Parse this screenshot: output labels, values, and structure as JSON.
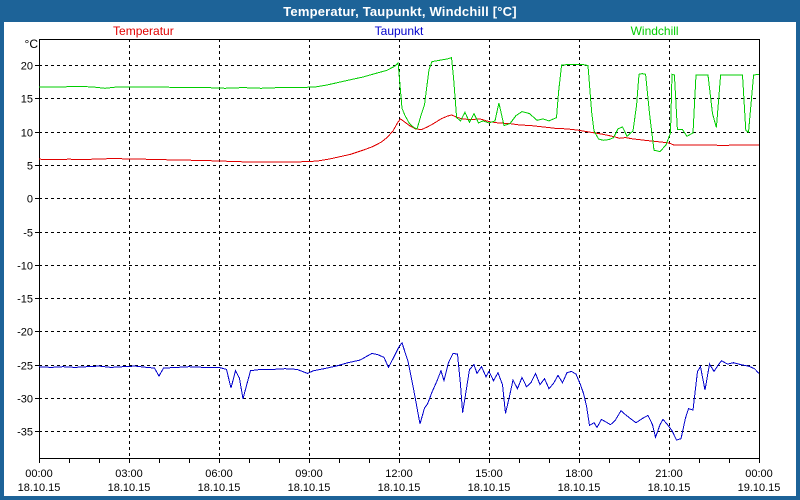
{
  "window": {
    "title": "Temperatur, Taupunkt, Windchill [°C]"
  },
  "colors": {
    "titlebar": "#1d6398",
    "frame_border": "#1d6398",
    "background": "#ffffff",
    "plot_frame": "#000000",
    "gridline": "#000000",
    "tick_text": "#000000",
    "title_text": "#ffffff",
    "temperatur": "#e00000",
    "taupunkt": "#0000cc",
    "windchill": "#00cc00"
  },
  "legend": {
    "items": [
      {
        "label": "Temperatur",
        "color": "#e00000"
      },
      {
        "label": "Taupunkt",
        "color": "#0000cc"
      },
      {
        "label": "Windchill",
        "color": "#00cc00"
      }
    ]
  },
  "chart_data": {
    "type": "line",
    "title": "Temperatur, Taupunkt, Windchill [°C]",
    "ylabel": "°C",
    "xlabel": "",
    "grid": "dashed",
    "legend_position": "top",
    "ylim": [
      -39,
      23.9
    ],
    "yticks": [
      20,
      15,
      10,
      5,
      0,
      -5,
      -10,
      -15,
      -20,
      -25,
      -30,
      -35
    ],
    "x_hours_range": [
      0,
      24
    ],
    "x_minor_tick_every_hours": 1,
    "x_major_ticks": [
      {
        "hour": 0,
        "time": "00:00",
        "date": "18.10.15"
      },
      {
        "hour": 3,
        "time": "03:00",
        "date": "18.10.15"
      },
      {
        "hour": 6,
        "time": "06:00",
        "date": "18.10.15"
      },
      {
        "hour": 9,
        "time": "09:00",
        "date": "18.10.15"
      },
      {
        "hour": 12,
        "time": "12:00",
        "date": "18.10.15"
      },
      {
        "hour": 15,
        "time": "15:00",
        "date": "18.10.15"
      },
      {
        "hour": 18,
        "time": "18:00",
        "date": "18.10.15"
      },
      {
        "hour": 21,
        "time": "21:00",
        "date": "18.10.15"
      },
      {
        "hour": 24,
        "time": "00:00",
        "date": "19.10.15"
      }
    ],
    "series": [
      {
        "name": "Temperatur",
        "color": "#e00000",
        "points": [
          [
            0,
            5.85
          ],
          [
            0.5,
            5.8
          ],
          [
            1,
            5.85
          ],
          [
            1.5,
            5.8
          ],
          [
            2,
            5.9
          ],
          [
            2.5,
            5.95
          ],
          [
            3,
            5.9
          ],
          [
            3.5,
            5.85
          ],
          [
            4,
            5.8
          ],
          [
            4.5,
            5.75
          ],
          [
            5,
            5.7
          ],
          [
            5.5,
            5.65
          ],
          [
            6,
            5.6
          ],
          [
            6.5,
            5.5
          ],
          [
            7,
            5.45
          ],
          [
            7.5,
            5.45
          ],
          [
            8,
            5.4
          ],
          [
            8.5,
            5.45
          ],
          [
            9,
            5.5
          ],
          [
            9.3,
            5.6
          ],
          [
            9.7,
            5.9
          ],
          [
            10,
            6.2
          ],
          [
            10.4,
            6.6
          ],
          [
            10.8,
            7.2
          ],
          [
            11.1,
            7.7
          ],
          [
            11.4,
            8.4
          ],
          [
            11.6,
            9.1
          ],
          [
            11.8,
            10.1
          ],
          [
            11.95,
            11.3
          ],
          [
            12.05,
            11.9
          ],
          [
            12.2,
            11.4
          ],
          [
            12.35,
            10.9
          ],
          [
            12.55,
            10.4
          ],
          [
            12.75,
            10.3
          ],
          [
            12.95,
            10.7
          ],
          [
            13.15,
            11.2
          ],
          [
            13.4,
            11.9
          ],
          [
            13.6,
            12.3
          ],
          [
            13.75,
            12.5
          ],
          [
            13.9,
            12.2
          ],
          [
            14.1,
            11.9
          ],
          [
            14.4,
            11.8
          ],
          [
            14.7,
            11.9
          ],
          [
            15,
            11.5
          ],
          [
            15.3,
            11.3
          ],
          [
            15.7,
            11.2
          ],
          [
            16,
            11
          ],
          [
            16.4,
            10.9
          ],
          [
            16.8,
            10.7
          ],
          [
            17.2,
            10.5
          ],
          [
            17.6,
            10.4
          ],
          [
            18,
            10.2
          ],
          [
            18.4,
            9.9
          ],
          [
            18.8,
            9.6
          ],
          [
            19.2,
            9.2
          ],
          [
            19.35,
            9
          ],
          [
            19.55,
            9.1
          ],
          [
            19.8,
            8.9
          ],
          [
            20.2,
            8.7
          ],
          [
            20.6,
            8.5
          ],
          [
            21,
            8.3
          ],
          [
            21.15,
            8
          ],
          [
            21.6,
            8
          ],
          [
            22,
            8
          ],
          [
            22.4,
            8
          ],
          [
            22.8,
            7.9
          ],
          [
            23.2,
            8
          ],
          [
            23.6,
            8
          ],
          [
            24,
            8
          ]
        ]
      },
      {
        "name": "Taupunkt",
        "color": "#0000cc",
        "points": [
          [
            0,
            -25.3
          ],
          [
            0.4,
            -25.4
          ],
          [
            0.8,
            -25.3
          ],
          [
            1.2,
            -25.4
          ],
          [
            1.6,
            -25.3
          ],
          [
            2,
            -25.2
          ],
          [
            2.4,
            -25.4
          ],
          [
            2.8,
            -25.3
          ],
          [
            3.2,
            -25.2
          ],
          [
            3.6,
            -25.4
          ],
          [
            3.85,
            -25.5
          ],
          [
            4,
            -26.7
          ],
          [
            4.15,
            -25.5
          ],
          [
            4.6,
            -25.4
          ],
          [
            5,
            -25.3
          ],
          [
            5.5,
            -25.4
          ],
          [
            6,
            -25.4
          ],
          [
            6.25,
            -25.7
          ],
          [
            6.4,
            -28.5
          ],
          [
            6.55,
            -25.9
          ],
          [
            6.68,
            -27
          ],
          [
            6.8,
            -30.1
          ],
          [
            7.05,
            -25.9
          ],
          [
            7.4,
            -25.7
          ],
          [
            7.8,
            -25.7
          ],
          [
            8.2,
            -25.6
          ],
          [
            8.6,
            -25.7
          ],
          [
            8.95,
            -26.3
          ],
          [
            9.15,
            -25.9
          ],
          [
            9.5,
            -25.6
          ],
          [
            9.9,
            -25.2
          ],
          [
            10.3,
            -24.7
          ],
          [
            10.7,
            -24.3
          ],
          [
            11.1,
            -23.3
          ],
          [
            11.3,
            -23.5
          ],
          [
            11.5,
            -23.9
          ],
          [
            11.65,
            -25.4
          ],
          [
            11.8,
            -24.1
          ],
          [
            12,
            -22.3
          ],
          [
            12.1,
            -21.7
          ],
          [
            12.3,
            -24.5
          ],
          [
            12.5,
            -29
          ],
          [
            12.7,
            -33.9
          ],
          [
            12.85,
            -31.5
          ],
          [
            12.95,
            -30.9
          ],
          [
            13.1,
            -29.1
          ],
          [
            13.25,
            -27.6
          ],
          [
            13.4,
            -25.9
          ],
          [
            13.5,
            -27.4
          ],
          [
            13.65,
            -24.7
          ],
          [
            13.8,
            -23.3
          ],
          [
            13.95,
            -23.4
          ],
          [
            14.05,
            -28
          ],
          [
            14.12,
            -32.2
          ],
          [
            14.2,
            -30
          ],
          [
            14.35,
            -25.7
          ],
          [
            14.5,
            -25
          ],
          [
            14.6,
            -26.3
          ],
          [
            14.75,
            -25.3
          ],
          [
            14.9,
            -26.8
          ],
          [
            15,
            -26
          ],
          [
            15.15,
            -27.4
          ],
          [
            15.3,
            -26.2
          ],
          [
            15.45,
            -28
          ],
          [
            15.55,
            -32.3
          ],
          [
            15.68,
            -29.8
          ],
          [
            15.8,
            -27.3
          ],
          [
            15.95,
            -28.6
          ],
          [
            16.1,
            -26.9
          ],
          [
            16.25,
            -28.3
          ],
          [
            16.4,
            -27.7
          ],
          [
            16.55,
            -26.3
          ],
          [
            16.7,
            -28
          ],
          [
            16.85,
            -27.1
          ],
          [
            17,
            -28.6
          ],
          [
            17.15,
            -27.8
          ],
          [
            17.3,
            -26.6
          ],
          [
            17.45,
            -27.7
          ],
          [
            17.6,
            -26.2
          ],
          [
            17.75,
            -26
          ],
          [
            17.9,
            -26.4
          ],
          [
            18.05,
            -28
          ],
          [
            18.15,
            -29.3
          ],
          [
            18.25,
            -31.2
          ],
          [
            18.35,
            -34.1
          ],
          [
            18.5,
            -33.7
          ],
          [
            18.6,
            -34.4
          ],
          [
            18.75,
            -33.2
          ],
          [
            18.9,
            -33.6
          ],
          [
            19.05,
            -34
          ],
          [
            19.2,
            -33.4
          ],
          [
            19.4,
            -31.9
          ],
          [
            19.55,
            -32.5
          ],
          [
            19.75,
            -33.2
          ],
          [
            19.9,
            -33.7
          ],
          [
            20.1,
            -33.1
          ],
          [
            20.3,
            -32.6
          ],
          [
            20.45,
            -34
          ],
          [
            20.55,
            -35.9
          ],
          [
            20.7,
            -34
          ],
          [
            20.8,
            -33.2
          ],
          [
            20.95,
            -34
          ],
          [
            21.1,
            -34.9
          ],
          [
            21.25,
            -36.3
          ],
          [
            21.4,
            -36.1
          ],
          [
            21.55,
            -33
          ],
          [
            21.65,
            -31.6
          ],
          [
            21.8,
            -31.8
          ],
          [
            21.95,
            -26
          ],
          [
            22.05,
            -25.3
          ],
          [
            22.2,
            -28.8
          ],
          [
            22.35,
            -24.9
          ],
          [
            22.5,
            -26
          ],
          [
            22.65,
            -25
          ],
          [
            22.75,
            -24.4
          ],
          [
            22.95,
            -24.9
          ],
          [
            23.15,
            -24.7
          ],
          [
            23.4,
            -25
          ],
          [
            23.65,
            -25.2
          ],
          [
            23.85,
            -25.6
          ],
          [
            24,
            -26.3
          ]
        ]
      },
      {
        "name": "Windchill",
        "color": "#00cc00",
        "points": [
          [
            0,
            16.7
          ],
          [
            0.7,
            16.7
          ],
          [
            1.3,
            16.8
          ],
          [
            1.8,
            16.7
          ],
          [
            2.2,
            16.5
          ],
          [
            2.6,
            16.7
          ],
          [
            3.2,
            16.7
          ],
          [
            4,
            16.7
          ],
          [
            4.8,
            16.6
          ],
          [
            5.6,
            16.6
          ],
          [
            6.2,
            16.5
          ],
          [
            6.8,
            16.6
          ],
          [
            7.4,
            16.5
          ],
          [
            8,
            16.6
          ],
          [
            8.6,
            16.6
          ],
          [
            9.2,
            16.7
          ],
          [
            9.6,
            17
          ],
          [
            10,
            17.4
          ],
          [
            10.4,
            17.8
          ],
          [
            10.8,
            18.2
          ],
          [
            11.2,
            18.7
          ],
          [
            11.6,
            19.2
          ],
          [
            11.85,
            19.8
          ],
          [
            11.97,
            20.3
          ],
          [
            12.1,
            13.5
          ],
          [
            12.2,
            12.4
          ],
          [
            12.35,
            11.2
          ],
          [
            12.5,
            10.6
          ],
          [
            12.6,
            10.4
          ],
          [
            12.68,
            11.6
          ],
          [
            12.73,
            12.4
          ],
          [
            12.85,
            14
          ],
          [
            13,
            19.3
          ],
          [
            13.1,
            20.5
          ],
          [
            13.35,
            20.7
          ],
          [
            13.6,
            20.9
          ],
          [
            13.75,
            21.1
          ],
          [
            13.82,
            18
          ],
          [
            13.92,
            12.1
          ],
          [
            14.05,
            11.6
          ],
          [
            14.2,
            12.9
          ],
          [
            14.35,
            11.4
          ],
          [
            14.5,
            12.7
          ],
          [
            14.65,
            11.3
          ],
          [
            14.8,
            11.6
          ],
          [
            15,
            11.3
          ],
          [
            15.2,
            11.6
          ],
          [
            15.33,
            14.3
          ],
          [
            15.5,
            10.9
          ],
          [
            15.7,
            11.2
          ],
          [
            15.9,
            12.4
          ],
          [
            16.1,
            13
          ],
          [
            16.35,
            12.7
          ],
          [
            16.6,
            11.7
          ],
          [
            16.8,
            11.9
          ],
          [
            17,
            11.6
          ],
          [
            17.25,
            12.1
          ],
          [
            17.32,
            16
          ],
          [
            17.42,
            20
          ],
          [
            17.8,
            20.1
          ],
          [
            18.1,
            20.1
          ],
          [
            18.3,
            19.9
          ],
          [
            18.42,
            13
          ],
          [
            18.5,
            10.1
          ],
          [
            18.65,
            8.9
          ],
          [
            18.8,
            8.7
          ],
          [
            19,
            8.8
          ],
          [
            19.15,
            9.1
          ],
          [
            19.3,
            10.4
          ],
          [
            19.45,
            10.7
          ],
          [
            19.6,
            9.3
          ],
          [
            19.8,
            10.1
          ],
          [
            19.92,
            14
          ],
          [
            20,
            18.6
          ],
          [
            20.1,
            18.7
          ],
          [
            20.22,
            18.6
          ],
          [
            20.35,
            12.7
          ],
          [
            20.5,
            7.2
          ],
          [
            20.7,
            7
          ],
          [
            20.9,
            8
          ],
          [
            21.05,
            9.8
          ],
          [
            21.1,
            18.6
          ],
          [
            21.18,
            18.5
          ],
          [
            21.28,
            10.3
          ],
          [
            21.45,
            10.3
          ],
          [
            21.6,
            9.3
          ],
          [
            21.8,
            9.8
          ],
          [
            21.9,
            18.5
          ],
          [
            22.3,
            18.5
          ],
          [
            22.45,
            12.7
          ],
          [
            22.58,
            10.6
          ],
          [
            22.72,
            18.5
          ],
          [
            23.1,
            18.5
          ],
          [
            23.45,
            18.5
          ],
          [
            23.56,
            10.2
          ],
          [
            23.65,
            9.9
          ],
          [
            23.82,
            18.5
          ],
          [
            24,
            18.6
          ]
        ]
      }
    ]
  }
}
